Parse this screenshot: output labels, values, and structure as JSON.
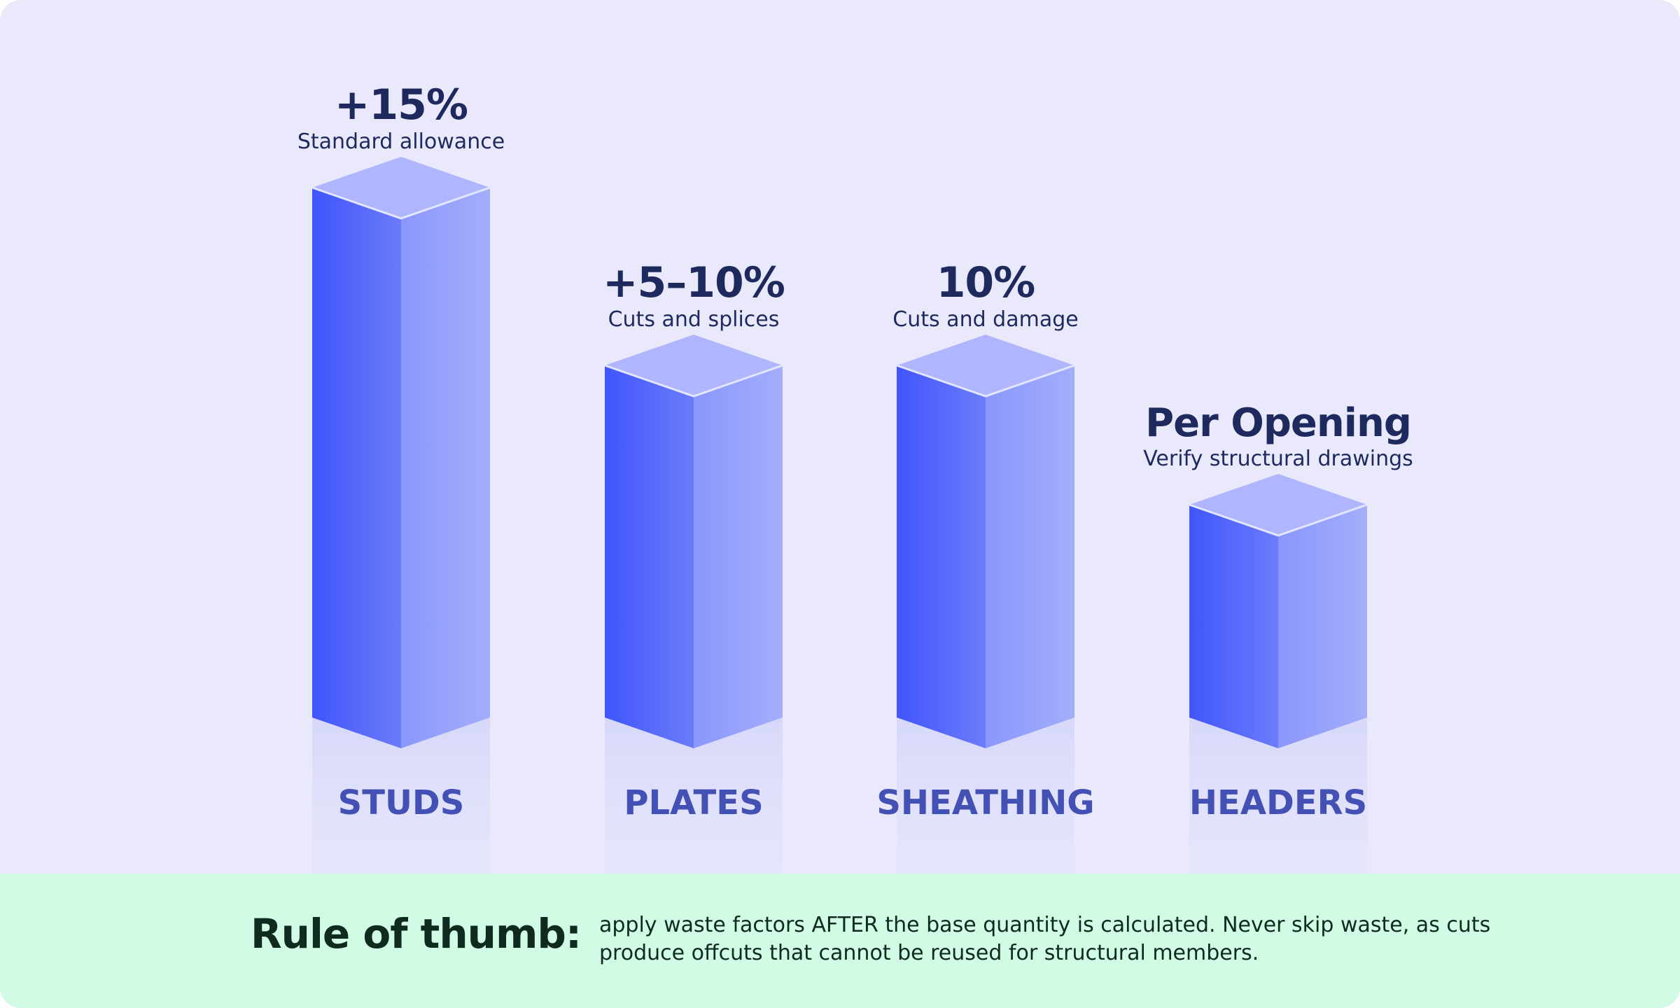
{
  "chart_data": {
    "type": "bar",
    "categories": [
      "STUDS",
      "PLATES",
      "SHEATHING",
      "HEADERS"
    ],
    "value_labels": [
      "+15%",
      "+5–10%",
      "10%",
      "Per Opening"
    ],
    "sublabels": [
      "Standard allowance",
      "Cuts and splices",
      "Cuts and damage",
      "Verify structural drawings"
    ],
    "values": [
      15,
      10,
      10,
      5
    ],
    "colors": {
      "front_dark": "#4055fb",
      "front_light": "#6b7cfa",
      "side_dark": "#8a97fb",
      "side_light": "#a3aefb",
      "top": "#afb6fd",
      "background": "#eae9fc"
    }
  },
  "footer": {
    "title": "Rule of thumb:",
    "text": "apply waste factors AFTER the base quantity is calculated. Never skip waste, as cuts produce offcuts that cannot be reused for structural members."
  }
}
